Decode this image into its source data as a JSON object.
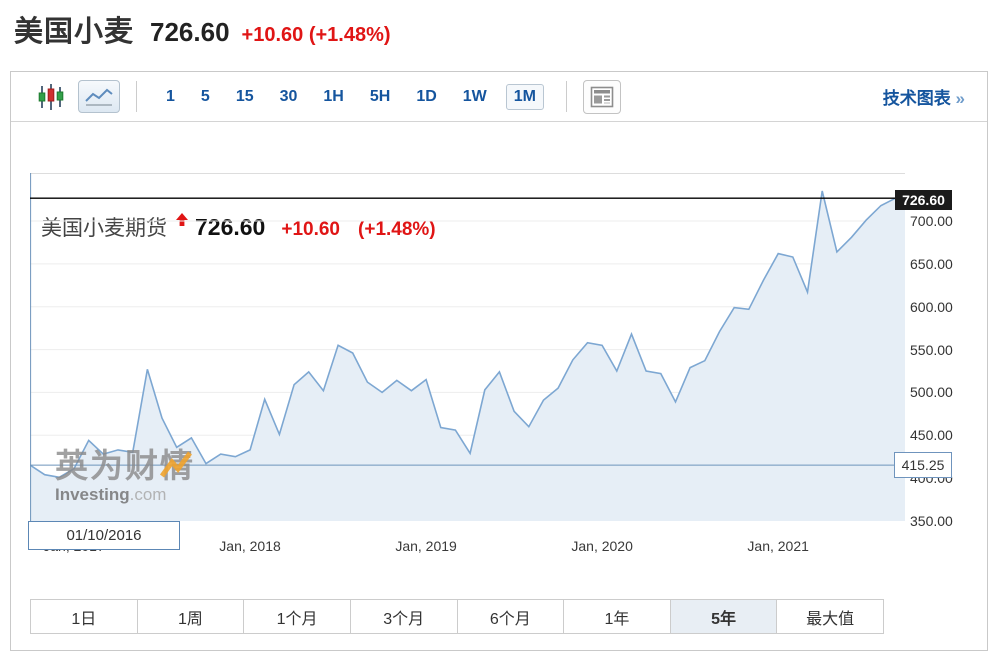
{
  "page_header": {
    "title": "美国小麦",
    "price": "726.60",
    "change": "+10.60 (+1.48%)"
  },
  "toolbar": {
    "chart_type": [
      {
        "name": "candlestick-icon",
        "active": false
      },
      {
        "name": "line-chart-icon",
        "active": true
      }
    ],
    "intervals": [
      {
        "label": "1",
        "active": false
      },
      {
        "label": "5",
        "active": false
      },
      {
        "label": "15",
        "active": false
      },
      {
        "label": "30",
        "active": false
      },
      {
        "label": "1H",
        "active": false
      },
      {
        "label": "5H",
        "active": false
      },
      {
        "label": "1D",
        "active": false
      },
      {
        "label": "1W",
        "active": false
      },
      {
        "label": "1M",
        "active": true
      }
    ],
    "news_icon": "news-icon",
    "tech_link": "技术图表",
    "tech_link_chevron": "»"
  },
  "chart_header": {
    "name": "美国小麦期货",
    "arrow_icon": "up-arrow-icon",
    "price": "726.60",
    "change": "+10.60",
    "change_pct": "(+1.48%)"
  },
  "price_badge": "726.60",
  "crosshair_label": "415.25",
  "tooltip": {
    "date": "01/10/2016"
  },
  "watermark": {
    "cn": "英为财情",
    "en": "Investing",
    "en_suffix": ".com"
  },
  "colors": {
    "accent_red": "#e01515",
    "link_blue": "#15559e",
    "line": "#7da7d2",
    "fill": "#e6eef6",
    "crosshair": "#6d94bb",
    "grid": "#ededed",
    "current_price_line": "#000000"
  },
  "range_buttons": [
    {
      "label": "1日",
      "active": false
    },
    {
      "label": "1周",
      "active": false
    },
    {
      "label": "1个月",
      "active": false
    },
    {
      "label": "3个月",
      "active": false
    },
    {
      "label": "6个月",
      "active": false
    },
    {
      "label": "1年",
      "active": false
    },
    {
      "label": "5年",
      "active": true
    },
    {
      "label": "最大值",
      "active": false
    }
  ],
  "chart_data": {
    "type": "area",
    "title": "美国小麦期货",
    "interval": "1M",
    "range": "5年",
    "ylim": [
      350,
      756
    ],
    "current_price": 726.6,
    "crosshair": {
      "date": "01/10/2016",
      "value": 415.25
    },
    "y_ticks": [
      {
        "label": "700.00",
        "value": 700
      },
      {
        "label": "650.00",
        "value": 650
      },
      {
        "label": "600.00",
        "value": 600
      },
      {
        "label": "550.00",
        "value": 550
      },
      {
        "label": "500.00",
        "value": 500
      },
      {
        "label": "450.00",
        "value": 450
      },
      {
        "label": "400.00",
        "value": 400
      },
      {
        "label": "350.00",
        "value": 350
      }
    ],
    "x_ticks": [
      {
        "label": "Jan, 2017",
        "month_index": 3
      },
      {
        "label": "Jan, 2018",
        "month_index": 15
      },
      {
        "label": "Jan, 2019",
        "month_index": 27
      },
      {
        "label": "Jan, 2020",
        "month_index": 39
      },
      {
        "label": "Jan, 2021",
        "month_index": 51
      }
    ],
    "x": [
      "2016-10",
      "2016-11",
      "2016-12",
      "2017-01",
      "2017-02",
      "2017-03",
      "2017-04",
      "2017-05",
      "2017-06",
      "2017-07",
      "2017-08",
      "2017-09",
      "2017-10",
      "2017-11",
      "2017-12",
      "2018-01",
      "2018-02",
      "2018-03",
      "2018-04",
      "2018-05",
      "2018-06",
      "2018-07",
      "2018-08",
      "2018-09",
      "2018-10",
      "2018-11",
      "2018-12",
      "2019-01",
      "2019-02",
      "2019-03",
      "2019-04",
      "2019-05",
      "2019-06",
      "2019-07",
      "2019-08",
      "2019-09",
      "2019-10",
      "2019-11",
      "2019-12",
      "2020-01",
      "2020-02",
      "2020-03",
      "2020-04",
      "2020-05",
      "2020-06",
      "2020-07",
      "2020-08",
      "2020-09",
      "2020-10",
      "2020-11",
      "2020-12",
      "2021-01",
      "2021-02",
      "2021-03",
      "2021-04",
      "2021-05",
      "2021-06",
      "2021-07",
      "2021-08",
      "2021-09"
    ],
    "values": [
      415.25,
      404,
      401,
      411,
      444,
      428,
      433,
      430,
      527,
      470,
      436,
      447,
      417,
      428,
      425,
      433,
      492,
      451,
      509,
      524,
      502,
      555,
      546,
      512,
      500,
      514,
      502,
      515,
      459,
      456,
      429,
      503,
      524,
      478,
      460,
      491,
      505,
      538,
      558,
      555,
      525,
      568,
      525,
      522,
      489,
      529,
      537,
      571,
      599,
      597,
      631,
      662,
      658,
      617,
      735,
      664,
      681,
      701,
      718,
      726.6
    ]
  }
}
